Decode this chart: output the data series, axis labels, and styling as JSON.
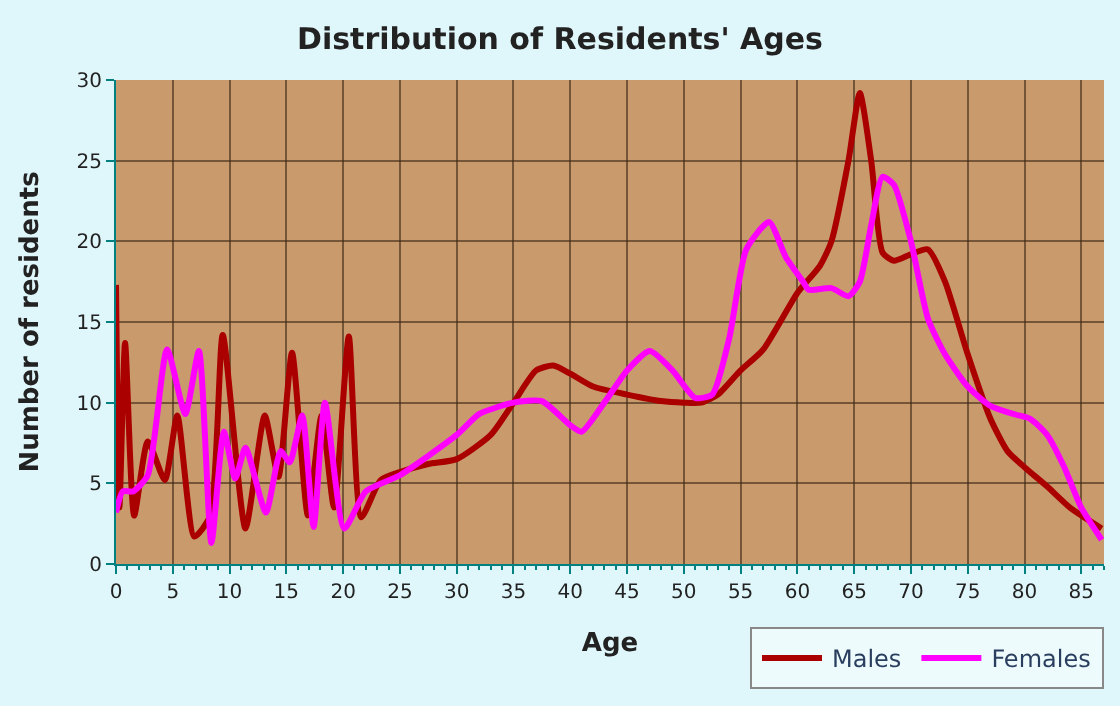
{
  "chart_data": {
    "type": "line",
    "title": "Distribution of Residents' Ages",
    "xlabel": "Age",
    "ylabel": "Number of residents",
    "xlim": [
      0,
      87
    ],
    "ylim": [
      0,
      30
    ],
    "xticks": [
      0,
      5,
      10,
      15,
      20,
      25,
      30,
      35,
      40,
      45,
      50,
      55,
      60,
      65,
      70,
      75,
      80,
      85
    ],
    "yticks": [
      0,
      5,
      10,
      15,
      20,
      25,
      30
    ],
    "grid": true,
    "legend": "bottom right",
    "marker": "none",
    "line_style": "solid",
    "series": [
      {
        "name": "Males",
        "color": "#aa0000",
        "x": [
          0,
          0.3,
          0.8,
          1.6,
          2.8,
          4.3,
          5.4,
          6.9,
          8.3,
          9.4,
          11.4,
          13.1,
          14.3,
          15.5,
          16.9,
          18.1,
          19.2,
          20.5,
          21.6,
          23.3,
          25,
          27.5,
          30,
          33,
          35,
          37,
          38.5,
          40,
          42,
          45,
          48,
          50,
          51.5,
          53,
          55,
          57,
          60,
          62,
          63,
          64.5,
          65.5,
          66.5,
          67.5,
          68.5,
          70,
          71.5,
          73,
          75,
          77,
          78.5,
          80,
          82,
          84,
          86.8
        ],
        "values": [
          17.3,
          3.5,
          13.7,
          3,
          7.6,
          5.2,
          9.2,
          1.7,
          3,
          14.2,
          2.2,
          9.2,
          5.4,
          13.1,
          3,
          9.2,
          3.5,
          14.1,
          2.9,
          5.2,
          5.7,
          6.2,
          6.5,
          8,
          10,
          12,
          12.3,
          11.8,
          11,
          10.5,
          10.1,
          10,
          10,
          10.5,
          12,
          13.3,
          16.8,
          18.5,
          20,
          25,
          29.2,
          25,
          19.3,
          18.8,
          19.2,
          19.5,
          17.5,
          13,
          9,
          7,
          6,
          4.8,
          3.5,
          2.2
        ]
      },
      {
        "name": "Females",
        "color": "#ff00ff",
        "x": [
          0,
          0.6,
          1.5,
          2.8,
          4.5,
          6.1,
          7.3,
          8.4,
          9.5,
          10.5,
          11.4,
          13.2,
          14.5,
          15.3,
          16.4,
          17.4,
          18.4,
          20.1,
          22,
          25,
          30,
          32,
          35,
          37.5,
          40,
          41,
          43,
          45,
          47,
          49,
          51,
          52.5,
          54,
          55.5,
          57.5,
          59,
          60.5,
          61,
          63,
          64.5,
          65.5,
          66.5,
          67.5,
          68.5,
          70,
          71.5,
          73,
          75,
          77,
          79,
          80.5,
          82,
          83.5,
          85,
          86.8
        ],
        "values": [
          3.2,
          4.5,
          4.5,
          5.5,
          13.3,
          9.3,
          13.2,
          1.3,
          8.2,
          5.3,
          7.2,
          3.2,
          7,
          6.3,
          9.2,
          2.3,
          10,
          2.2,
          4.5,
          5.5,
          8,
          9.3,
          10,
          10.1,
          8.6,
          8.2,
          10,
          12,
          13.2,
          12,
          10.3,
          10.5,
          14,
          19.5,
          21.2,
          19,
          17.5,
          17,
          17.1,
          16.6,
          17.5,
          21,
          24,
          23.5,
          20,
          15.2,
          13,
          11,
          9.8,
          9.3,
          9,
          8,
          6,
          3.5,
          1.5
        ]
      }
    ]
  }
}
